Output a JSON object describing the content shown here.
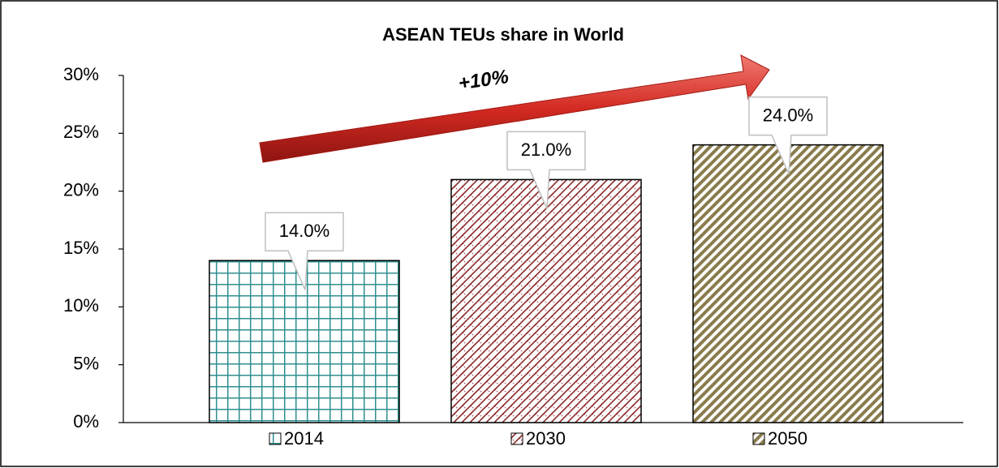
{
  "chart_data": {
    "type": "bar",
    "title": "ASEAN TEUs share in World",
    "annotation": "+10%",
    "categories": [
      "2014",
      "2030",
      "2050"
    ],
    "values": [
      14,
      21,
      24
    ],
    "value_labels": [
      "14.0%",
      "21.0%",
      "24.0%"
    ],
    "colors": [
      "#2f8f8f",
      "#8b2b2b",
      "#8a7c4e"
    ],
    "ylim": [
      0,
      30
    ],
    "yticks": [
      {
        "value": 0,
        "label": "0%"
      },
      {
        "value": 5,
        "label": "5%"
      },
      {
        "value": 10,
        "label": "10%"
      },
      {
        "value": 15,
        "label": "15%"
      },
      {
        "value": 20,
        "label": "20%"
      },
      {
        "value": 25,
        "label": "25%"
      },
      {
        "value": 30,
        "label": "30%"
      }
    ],
    "grid": false
  }
}
